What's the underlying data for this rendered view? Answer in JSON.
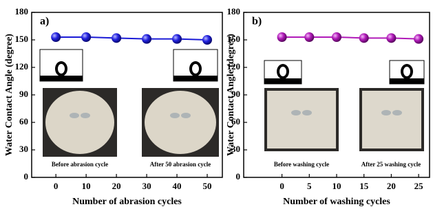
{
  "chart_data": [
    {
      "type": "line",
      "label": "a)",
      "xlabel": "Number of abrasion cycles",
      "ylabel": "Water Contact Angle (degree)",
      "x": [
        0,
        10,
        20,
        30,
        40,
        50
      ],
      "series": [
        {
          "color": "#1a1ad6",
          "values": [
            153,
            153,
            152,
            151,
            151,
            150
          ]
        }
      ],
      "xlim": [
        -8,
        55
      ],
      "xticks": [
        0,
        10,
        20,
        30,
        40,
        50
      ],
      "ylim": [
        0,
        180
      ],
      "yticks": [
        0,
        30,
        60,
        90,
        120,
        150,
        180
      ],
      "annotations": [
        "Before abrasion cycle",
        "After 50 abrasion cycle"
      ]
    },
    {
      "type": "line",
      "label": "b)",
      "xlabel": "Number of washing cycles",
      "ylabel": "Water Contact Angle (degree)",
      "x": [
        0,
        5,
        10,
        15,
        20,
        25
      ],
      "series": [
        {
          "color": "#b01ab8",
          "values": [
            153,
            153,
            153,
            152,
            152,
            151
          ]
        }
      ],
      "xlim": [
        -7,
        27
      ],
      "xticks": [
        0,
        5,
        10,
        15,
        20,
        25
      ],
      "ylim": [
        0,
        180
      ],
      "yticks": [
        0,
        30,
        60,
        90,
        120,
        150,
        180
      ],
      "annotations": [
        "Before washing cycle",
        "After 25 washing cycle"
      ]
    }
  ]
}
